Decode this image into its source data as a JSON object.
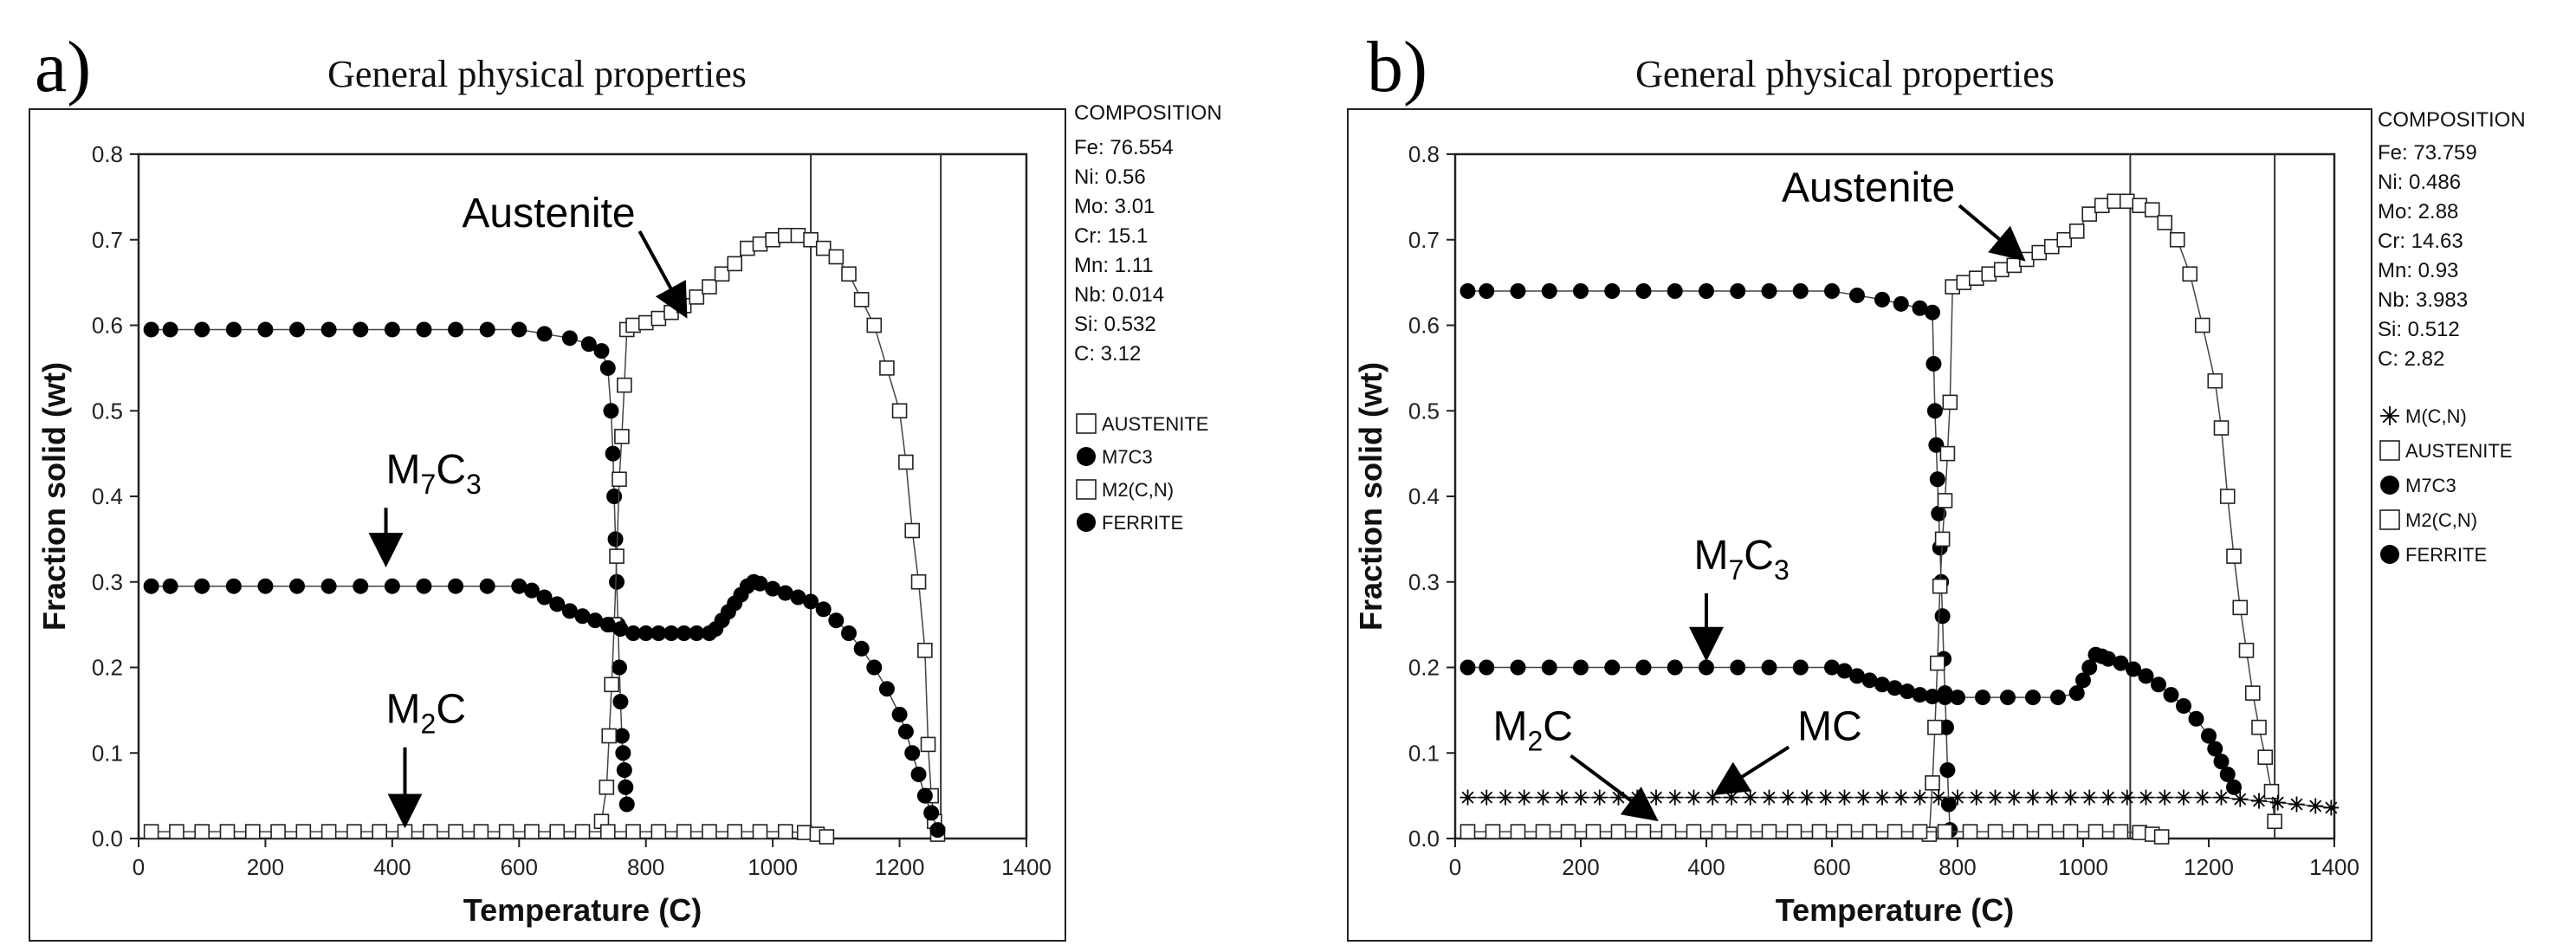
{
  "chart_data": [
    {
      "panel_label": "a)",
      "type": "scatter",
      "title": "General physical properties",
      "xlabel": "Temperature (C)",
      "ylabel": "Fraction solid (wt)",
      "xlim": [
        0,
        1400
      ],
      "ylim": [
        0,
        0.8
      ],
      "xticks": [
        0,
        200,
        400,
        600,
        800,
        1000,
        1200,
        1400
      ],
      "yticks": [
        0.0,
        0.1,
        0.2,
        0.3,
        0.4,
        0.5,
        0.6,
        0.7,
        0.8
      ],
      "ytick_labels": [
        "0.0",
        "0.1",
        "0.2",
        "0.3",
        "0.4",
        "0.5",
        "0.6",
        "0.7",
        "0.8"
      ],
      "vertical_lines": [
        1060,
        1265
      ],
      "composition": {
        "heading": "COMPOSITION",
        "items": [
          "Fe: 76.554",
          "Ni: 0.56",
          "Mo: 3.01",
          "Cr: 15.1",
          "Mn: 1.11",
          "Nb: 0.014",
          "Si: 0.532",
          "C: 3.12"
        ]
      },
      "legend": [
        {
          "label": "AUSTENITE",
          "marker": "square"
        },
        {
          "label": "M7C3",
          "marker": "circle"
        },
        {
          "label": "M2(C,N)",
          "marker": "square"
        },
        {
          "label": "FERRITE",
          "marker": "circle"
        }
      ],
      "annotations": [
        {
          "text": "Austenite",
          "tx": 510,
          "ty": 0.715,
          "ax": 860,
          "ay": 0.615
        },
        {
          "text": "M7C3",
          "base": "M",
          "s1": "7",
          "mid": "C",
          "s2": "3",
          "tx": 390,
          "ty": 0.415,
          "ax": 390,
          "ay": 0.325
        },
        {
          "text": "M2C",
          "base": "M",
          "s1": "2",
          "mid": "C",
          "s2": "",
          "tx": 390,
          "ty": 0.135,
          "ax": 420,
          "ay": 0.02
        }
      ],
      "series": [
        {
          "name": "FERRITE",
          "marker": "circle",
          "x": [
            20,
            50,
            100,
            150,
            200,
            250,
            300,
            350,
            400,
            450,
            500,
            550,
            600,
            640,
            680,
            710,
            730,
            740,
            745,
            748,
            750,
            752,
            754,
            756,
            758,
            760,
            762,
            764,
            766,
            768,
            770
          ],
          "y": [
            0.595,
            0.595,
            0.595,
            0.595,
            0.595,
            0.595,
            0.595,
            0.595,
            0.595,
            0.595,
            0.595,
            0.595,
            0.595,
            0.59,
            0.585,
            0.578,
            0.57,
            0.55,
            0.5,
            0.45,
            0.4,
            0.35,
            0.3,
            0.25,
            0.2,
            0.16,
            0.12,
            0.1,
            0.08,
            0.06,
            0.04
          ]
        },
        {
          "name": "AUSTENITE",
          "marker": "square",
          "x": [
            730,
            738,
            742,
            746,
            750,
            754,
            758,
            762,
            766,
            770,
            780,
            800,
            820,
            840,
            860,
            880,
            900,
            920,
            940,
            960,
            980,
            1000,
            1020,
            1040,
            1060,
            1080,
            1100,
            1120,
            1140,
            1160,
            1180,
            1200,
            1210,
            1220,
            1230,
            1240,
            1245,
            1250,
            1255,
            1260
          ],
          "y": [
            0.02,
            0.06,
            0.12,
            0.18,
            0.25,
            0.33,
            0.42,
            0.47,
            0.53,
            0.595,
            0.6,
            0.603,
            0.608,
            0.615,
            0.623,
            0.633,
            0.645,
            0.66,
            0.672,
            0.69,
            0.695,
            0.7,
            0.705,
            0.705,
            0.7,
            0.69,
            0.68,
            0.66,
            0.63,
            0.6,
            0.55,
            0.5,
            0.44,
            0.36,
            0.3,
            0.22,
            0.11,
            0.05,
            0.02,
            0.005
          ]
        },
        {
          "name": "M7C3",
          "marker": "circle",
          "x": [
            20,
            50,
            100,
            150,
            200,
            250,
            300,
            350,
            400,
            450,
            500,
            550,
            600,
            620,
            640,
            660,
            680,
            700,
            720,
            740,
            760,
            780,
            800,
            820,
            840,
            860,
            880,
            900,
            910,
            920,
            930,
            940,
            950,
            960,
            970,
            980,
            1000,
            1020,
            1040,
            1060,
            1080,
            1100,
            1120,
            1140,
            1160,
            1180,
            1200,
            1210,
            1220,
            1230,
            1240,
            1250,
            1260
          ],
          "y": [
            0.295,
            0.295,
            0.295,
            0.295,
            0.295,
            0.295,
            0.295,
            0.295,
            0.295,
            0.295,
            0.295,
            0.295,
            0.295,
            0.29,
            0.282,
            0.274,
            0.266,
            0.26,
            0.255,
            0.25,
            0.245,
            0.24,
            0.24,
            0.24,
            0.24,
            0.24,
            0.24,
            0.24,
            0.245,
            0.255,
            0.265,
            0.275,
            0.285,
            0.295,
            0.3,
            0.298,
            0.292,
            0.287,
            0.282,
            0.277,
            0.268,
            0.255,
            0.24,
            0.222,
            0.2,
            0.175,
            0.145,
            0.125,
            0.1,
            0.075,
            0.05,
            0.03,
            0.01
          ]
        },
        {
          "name": "M2(C,N)",
          "marker": "square",
          "x": [
            20,
            60,
            100,
            140,
            180,
            220,
            260,
            300,
            340,
            380,
            420,
            460,
            500,
            540,
            580,
            620,
            660,
            700,
            740,
            780,
            820,
            860,
            900,
            940,
            980,
            1020,
            1050,
            1070,
            1085
          ],
          "y": [
            0.008,
            0.008,
            0.008,
            0.008,
            0.008,
            0.008,
            0.008,
            0.008,
            0.008,
            0.008,
            0.008,
            0.008,
            0.008,
            0.008,
            0.008,
            0.008,
            0.008,
            0.008,
            0.008,
            0.008,
            0.008,
            0.008,
            0.008,
            0.008,
            0.008,
            0.008,
            0.007,
            0.005,
            0.002
          ]
        }
      ]
    },
    {
      "panel_label": "b)",
      "type": "scatter",
      "title": "General physical properties",
      "xlabel": "Temperature (C)",
      "ylabel": "Fraction solid (wt)",
      "xlim": [
        0,
        1400
      ],
      "ylim": [
        0,
        0.8
      ],
      "xticks": [
        0,
        200,
        400,
        600,
        800,
        1000,
        1200,
        1400
      ],
      "yticks": [
        0.0,
        0.1,
        0.2,
        0.3,
        0.4,
        0.5,
        0.6,
        0.7,
        0.8
      ],
      "ytick_labels": [
        "0.0",
        "0.1",
        "0.2",
        "0.3",
        "0.4",
        "0.5",
        "0.6",
        "0.7",
        "0.8"
      ],
      "vertical_lines": [
        1075,
        1305
      ],
      "composition": {
        "heading": "COMPOSITION",
        "items": [
          "Fe: 73.759",
          "Ni: 0.486",
          "Mo: 2.88",
          "Cr: 14.63",
          "Mn: 0.93",
          "Nb: 3.983",
          "Si: 0.512",
          "C: 2.82"
        ]
      },
      "legend": [
        {
          "label": "M(C,N)",
          "marker": "asterisk"
        },
        {
          "label": "AUSTENITE",
          "marker": "square"
        },
        {
          "label": "M7C3",
          "marker": "circle"
        },
        {
          "label": "M2(C,N)",
          "marker": "square"
        },
        {
          "label": "FERRITE",
          "marker": "circle"
        }
      ],
      "annotations": [
        {
          "text": "Austenite",
          "tx": 520,
          "ty": 0.745,
          "ax": 900,
          "ay": 0.68
        },
        {
          "text": "M7C3",
          "base": "M",
          "s1": "7",
          "mid": "C",
          "s2": "3",
          "tx": 380,
          "ty": 0.315,
          "ax": 400,
          "ay": 0.215
        },
        {
          "text": "M2C",
          "base": "M",
          "s1": "2",
          "mid": "C",
          "s2": "",
          "tx": 60,
          "ty": 0.115,
          "ax": 315,
          "ay": 0.025
        },
        {
          "text": "MC",
          "base": "MC",
          "s1": "",
          "mid": "",
          "s2": "",
          "tx": 545,
          "ty": 0.115,
          "ax": 420,
          "ay": 0.055
        }
      ],
      "series": [
        {
          "name": "FERRITE",
          "marker": "circle",
          "x": [
            20,
            50,
            100,
            150,
            200,
            250,
            300,
            350,
            400,
            450,
            500,
            550,
            600,
            640,
            680,
            710,
            740,
            760,
            762,
            764,
            766,
            768,
            770,
            772,
            774,
            776,
            778,
            780,
            782,
            784,
            786,
            788
          ],
          "y": [
            0.64,
            0.64,
            0.64,
            0.64,
            0.64,
            0.64,
            0.64,
            0.64,
            0.64,
            0.64,
            0.64,
            0.64,
            0.64,
            0.635,
            0.63,
            0.625,
            0.62,
            0.615,
            0.555,
            0.5,
            0.46,
            0.42,
            0.38,
            0.34,
            0.3,
            0.26,
            0.21,
            0.17,
            0.13,
            0.08,
            0.04,
            0.01
          ]
        },
        {
          "name": "AUSTENITE",
          "marker": "square",
          "x": [
            755,
            760,
            764,
            768,
            772,
            776,
            780,
            784,
            788,
            792,
            810,
            830,
            850,
            870,
            890,
            910,
            930,
            950,
            970,
            990,
            1010,
            1030,
            1050,
            1070,
            1090,
            1110,
            1130,
            1150,
            1170,
            1190,
            1210,
            1220,
            1230,
            1240,
            1250,
            1260,
            1270,
            1280,
            1290,
            1300,
            1305
          ],
          "y": [
            0.005,
            0.065,
            0.13,
            0.205,
            0.295,
            0.35,
            0.395,
            0.45,
            0.51,
            0.645,
            0.65,
            0.655,
            0.66,
            0.665,
            0.67,
            0.677,
            0.685,
            0.692,
            0.7,
            0.71,
            0.73,
            0.74,
            0.745,
            0.745,
            0.74,
            0.735,
            0.72,
            0.7,
            0.66,
            0.6,
            0.535,
            0.48,
            0.4,
            0.33,
            0.27,
            0.22,
            0.17,
            0.13,
            0.095,
            0.055,
            0.02
          ]
        },
        {
          "name": "M7C3",
          "marker": "circle",
          "x": [
            20,
            50,
            100,
            150,
            200,
            250,
            300,
            350,
            400,
            450,
            500,
            550,
            600,
            620,
            640,
            660,
            680,
            700,
            720,
            740,
            760,
            780,
            800,
            840,
            880,
            920,
            960,
            990,
            1000,
            1010,
            1020,
            1030,
            1040,
            1060,
            1080,
            1100,
            1120,
            1140,
            1160,
            1180,
            1200,
            1210,
            1220,
            1230,
            1240
          ],
          "y": [
            0.2,
            0.2,
            0.2,
            0.2,
            0.2,
            0.2,
            0.2,
            0.2,
            0.2,
            0.2,
            0.2,
            0.2,
            0.2,
            0.196,
            0.19,
            0.185,
            0.18,
            0.176,
            0.172,
            0.168,
            0.166,
            0.165,
            0.165,
            0.165,
            0.165,
            0.165,
            0.165,
            0.17,
            0.185,
            0.2,
            0.215,
            0.213,
            0.21,
            0.205,
            0.198,
            0.19,
            0.18,
            0.168,
            0.155,
            0.14,
            0.12,
            0.105,
            0.09,
            0.075,
            0.06
          ]
        },
        {
          "name": "M(C,N)",
          "marker": "asterisk",
          "x": [
            20,
            50,
            80,
            110,
            140,
            170,
            200,
            230,
            260,
            290,
            320,
            350,
            380,
            410,
            440,
            470,
            500,
            530,
            560,
            590,
            620,
            650,
            680,
            710,
            740,
            770,
            800,
            830,
            860,
            890,
            920,
            950,
            980,
            1010,
            1040,
            1070,
            1100,
            1130,
            1160,
            1190,
            1220,
            1250,
            1280,
            1310,
            1340,
            1370,
            1395
          ],
          "y": [
            0.048,
            0.048,
            0.048,
            0.048,
            0.048,
            0.048,
            0.048,
            0.048,
            0.048,
            0.048,
            0.048,
            0.048,
            0.048,
            0.048,
            0.048,
            0.048,
            0.048,
            0.048,
            0.048,
            0.048,
            0.048,
            0.048,
            0.048,
            0.048,
            0.048,
            0.048,
            0.048,
            0.048,
            0.048,
            0.048,
            0.048,
            0.048,
            0.048,
            0.048,
            0.048,
            0.048,
            0.048,
            0.048,
            0.048,
            0.048,
            0.048,
            0.046,
            0.044,
            0.042,
            0.04,
            0.038,
            0.036
          ]
        },
        {
          "name": "M2(C,N)",
          "marker": "square",
          "x": [
            20,
            60,
            100,
            140,
            180,
            220,
            260,
            300,
            340,
            380,
            420,
            460,
            500,
            540,
            580,
            620,
            660,
            700,
            740,
            780,
            820,
            860,
            900,
            940,
            980,
            1020,
            1060,
            1090,
            1110,
            1125
          ],
          "y": [
            0.008,
            0.008,
            0.008,
            0.008,
            0.008,
            0.008,
            0.008,
            0.008,
            0.008,
            0.008,
            0.008,
            0.008,
            0.008,
            0.008,
            0.008,
            0.008,
            0.008,
            0.008,
            0.008,
            0.008,
            0.008,
            0.008,
            0.008,
            0.008,
            0.008,
            0.008,
            0.008,
            0.007,
            0.005,
            0.002
          ]
        }
      ]
    }
  ]
}
